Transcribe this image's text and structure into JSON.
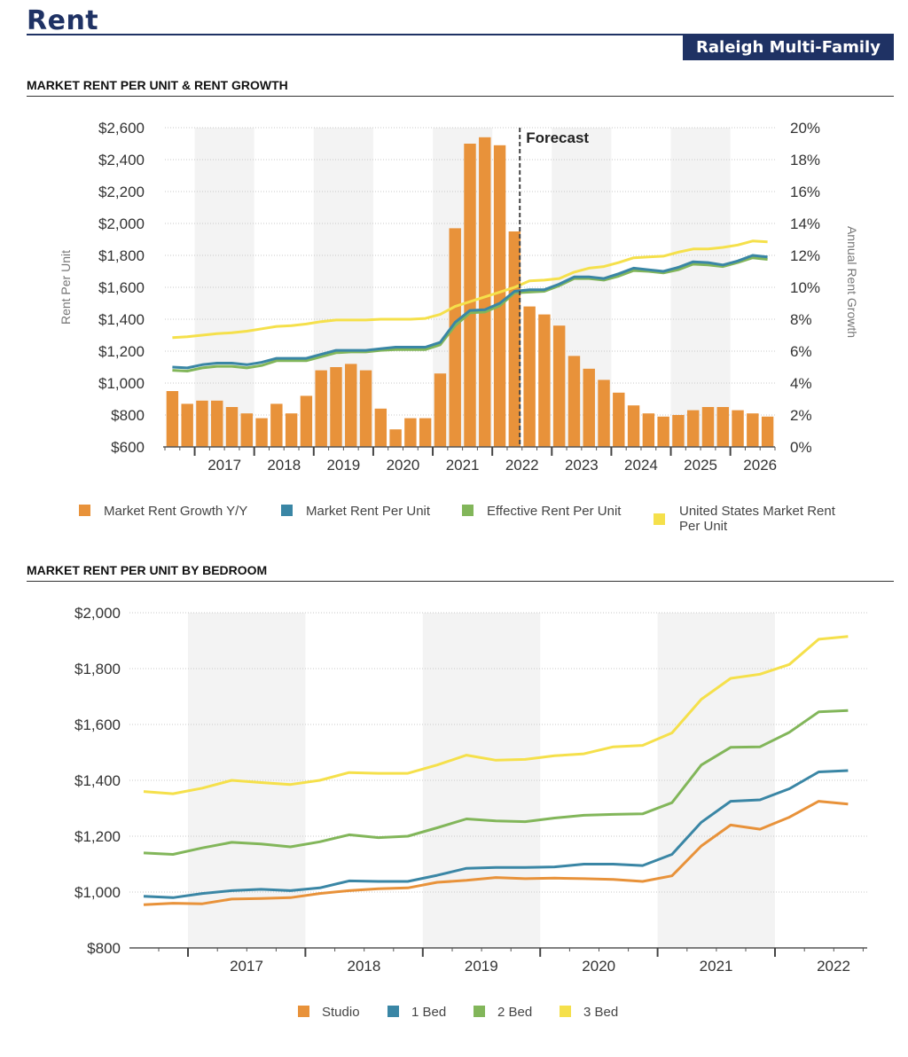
{
  "header": {
    "title": "Rent",
    "market": "Raleigh Multi-Family"
  },
  "sections": {
    "rent_growth_title": "MARKET RENT PER UNIT & RENT GROWTH",
    "bedroom_title": "MARKET RENT PER UNIT BY BEDROOM"
  },
  "colors": {
    "growth": "#e8923a",
    "market": "#3a86a5",
    "effective": "#82b65a",
    "us": "#f5e04b",
    "studio": "#e8923a",
    "bed1": "#3a86a5",
    "bed2": "#82b65a",
    "bed3": "#f5e04b"
  },
  "chart_data": [
    {
      "type": "bar+line",
      "title": "MARKET RENT PER UNIT & RENT GROWTH",
      "ylabel": "Rent Per Unit",
      "y2label": "Annual Rent Growth",
      "ylim": [
        600,
        2600
      ],
      "y2lim": [
        0,
        20
      ],
      "y_ticks": [
        "$600",
        "$800",
        "$1,000",
        "$1,200",
        "$1,400",
        "$1,600",
        "$1,800",
        "$2,000",
        "$2,200",
        "$2,400",
        "$2,600"
      ],
      "y2_ticks": [
        "0%",
        "2%",
        "4%",
        "6%",
        "8%",
        "10%",
        "12%",
        "14%",
        "16%",
        "18%",
        "20%"
      ],
      "x_labels": [
        "2017",
        "2018",
        "2019",
        "2020",
        "2021",
        "2022",
        "2023",
        "2024",
        "2025",
        "2026"
      ],
      "forecast_label": "Forecast",
      "forecast_start_index": 24,
      "quarters": 41,
      "series": [
        {
          "name": "Market Rent Growth Y/Y",
          "type": "bar",
          "axis": "right",
          "values": [
            3.5,
            2.7,
            2.9,
            2.9,
            2.5,
            2.1,
            1.8,
            2.7,
            2.1,
            3.2,
            4.8,
            5.0,
            5.2,
            4.8,
            2.4,
            1.1,
            1.8,
            1.8,
            4.6,
            13.7,
            19.0,
            19.4,
            18.9,
            13.5,
            8.8,
            8.3,
            7.6,
            5.7,
            4.9,
            4.2,
            3.4,
            2.6,
            2.1,
            1.9,
            2.0,
            2.3,
            2.5,
            2.5,
            2.3,
            2.1,
            1.9
          ]
        },
        {
          "name": "Market Rent Per Unit",
          "type": "line",
          "axis": "left",
          "values": [
            1100,
            1095,
            1115,
            1125,
            1125,
            1115,
            1130,
            1155,
            1155,
            1155,
            1180,
            1205,
            1205,
            1205,
            1215,
            1225,
            1225,
            1225,
            1255,
            1380,
            1455,
            1460,
            1500,
            1575,
            1585,
            1585,
            1620,
            1665,
            1665,
            1655,
            1685,
            1720,
            1710,
            1700,
            1725,
            1760,
            1755,
            1740,
            1765,
            1800,
            1790
          ]
        },
        {
          "name": "Effective Rent Per Unit",
          "type": "line",
          "axis": "left",
          "values": [
            1080,
            1075,
            1095,
            1105,
            1105,
            1095,
            1110,
            1140,
            1140,
            1140,
            1165,
            1190,
            1195,
            1195,
            1205,
            1210,
            1210,
            1210,
            1240,
            1360,
            1440,
            1445,
            1485,
            1565,
            1570,
            1575,
            1610,
            1655,
            1655,
            1645,
            1670,
            1705,
            1700,
            1690,
            1710,
            1745,
            1740,
            1730,
            1755,
            1785,
            1775
          ]
        },
        {
          "name": "United States Market Rent Per Unit",
          "type": "line",
          "axis": "left",
          "values": [
            1285,
            1290,
            1300,
            1310,
            1315,
            1325,
            1340,
            1355,
            1360,
            1370,
            1385,
            1395,
            1395,
            1395,
            1400,
            1400,
            1400,
            1405,
            1430,
            1480,
            1510,
            1540,
            1570,
            1600,
            1640,
            1645,
            1655,
            1695,
            1720,
            1730,
            1755,
            1785,
            1790,
            1795,
            1820,
            1840,
            1840,
            1850,
            1865,
            1890,
            1885
          ]
        }
      ],
      "legend": [
        "Market Rent Growth Y/Y",
        "Market Rent Per Unit",
        "Effective Rent Per Unit",
        "United States Market Rent Per Unit"
      ],
      "legend_lines": [
        "United States Market Rent",
        "Per Unit"
      ]
    },
    {
      "type": "line",
      "title": "MARKET RENT PER UNIT BY BEDROOM",
      "ylim": [
        800,
        2000
      ],
      "y_ticks": [
        "$800",
        "$1,000",
        "$1,200",
        "$1,400",
        "$1,600",
        "$1,800",
        "$2,000"
      ],
      "x_labels": [
        "2017",
        "2018",
        "2019",
        "2020",
        "2021",
        "2022"
      ],
      "quarters": 25,
      "series": [
        {
          "name": "Studio",
          "values": [
            955,
            960,
            958,
            975,
            977,
            980,
            995,
            1005,
            1012,
            1015,
            1035,
            1042,
            1052,
            1048,
            1050,
            1048,
            1045,
            1038,
            1058,
            1165,
            1240,
            1225,
            1268,
            1325,
            1315
          ]
        },
        {
          "name": "1 Bed",
          "values": [
            985,
            980,
            995,
            1005,
            1010,
            1005,
            1015,
            1040,
            1038,
            1038,
            1060,
            1085,
            1088,
            1088,
            1090,
            1100,
            1100,
            1095,
            1135,
            1250,
            1325,
            1330,
            1370,
            1430,
            1435
          ]
        },
        {
          "name": "2 Bed",
          "values": [
            1140,
            1135,
            1158,
            1178,
            1172,
            1162,
            1180,
            1205,
            1195,
            1200,
            1230,
            1262,
            1255,
            1252,
            1265,
            1275,
            1278,
            1280,
            1320,
            1455,
            1518,
            1520,
            1572,
            1645,
            1650
          ]
        },
        {
          "name": "3 Bed",
          "values": [
            1360,
            1352,
            1372,
            1400,
            1392,
            1385,
            1400,
            1428,
            1425,
            1425,
            1455,
            1490,
            1472,
            1475,
            1488,
            1495,
            1520,
            1525,
            1570,
            1690,
            1765,
            1780,
            1815,
            1905,
            1915
          ]
        }
      ],
      "legend": [
        "Studio",
        "1 Bed",
        "2 Bed",
        "3 Bed"
      ]
    }
  ]
}
